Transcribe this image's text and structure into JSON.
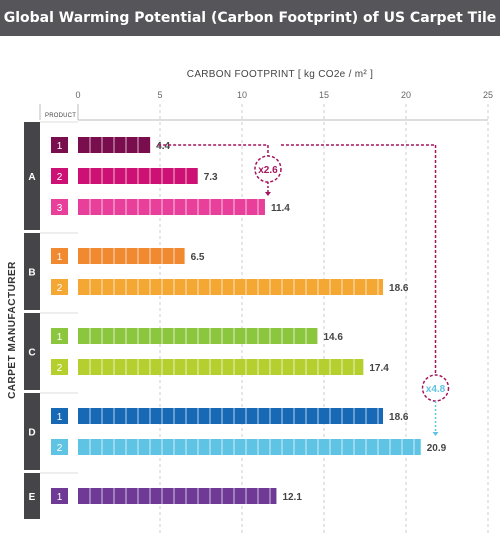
{
  "chart_data": {
    "type": "bar",
    "orientation": "horizontal",
    "title": "Global Warming Potential (Carbon Footprint) of US Carpet Tile",
    "xlabel": "CARBON FOOTPRINT  [ kg CO2e / m² ]",
    "ylabel": "CARPET MANUFACTURER",
    "product_header": "PRODUCT",
    "xlim": [
      0,
      25
    ],
    "xticks": [
      0,
      5,
      10,
      15,
      20,
      25
    ],
    "grid": "vertical dashed",
    "groups": [
      {
        "manufacturer": "A",
        "products": [
          {
            "product": "1",
            "value": 4.4,
            "label": "4.4",
            "color": "#7a0d4e"
          },
          {
            "product": "2",
            "value": 7.3,
            "label": "7.3",
            "color": "#cc1074"
          },
          {
            "product": "3",
            "value": 11.4,
            "label": "11.4",
            "color": "#e8409a"
          }
        ]
      },
      {
        "manufacturer": "B",
        "products": [
          {
            "product": "1",
            "value": 6.5,
            "label": "6.5",
            "color": "#f0892f"
          },
          {
            "product": "2",
            "value": 18.6,
            "label": "18.6",
            "color": "#f5a733"
          }
        ]
      },
      {
        "manufacturer": "C",
        "products": [
          {
            "product": "1",
            "value": 14.6,
            "label": "14.6",
            "color": "#8cc63f"
          },
          {
            "product": "2",
            "value": 17.4,
            "label": "17.4",
            "color": "#b5cf2e"
          }
        ]
      },
      {
        "manufacturer": "D",
        "products": [
          {
            "product": "1",
            "value": 18.6,
            "label": "18.6",
            "color": "#1769b5"
          },
          {
            "product": "2",
            "value": 20.9,
            "label": "20.9",
            "color": "#5fc3e4"
          }
        ]
      },
      {
        "manufacturer": "E",
        "products": [
          {
            "product": "1",
            "value": 12.1,
            "label": "12.1",
            "color": "#6e3a96"
          }
        ]
      }
    ],
    "annotations": [
      {
        "text": "x2.6",
        "from_value": 4.4,
        "to_value": 11.4,
        "color": "#a3155d"
      },
      {
        "text": "x4.8",
        "from_value": 4.4,
        "to_value": 20.9,
        "color": "#5fc3e4"
      }
    ]
  }
}
